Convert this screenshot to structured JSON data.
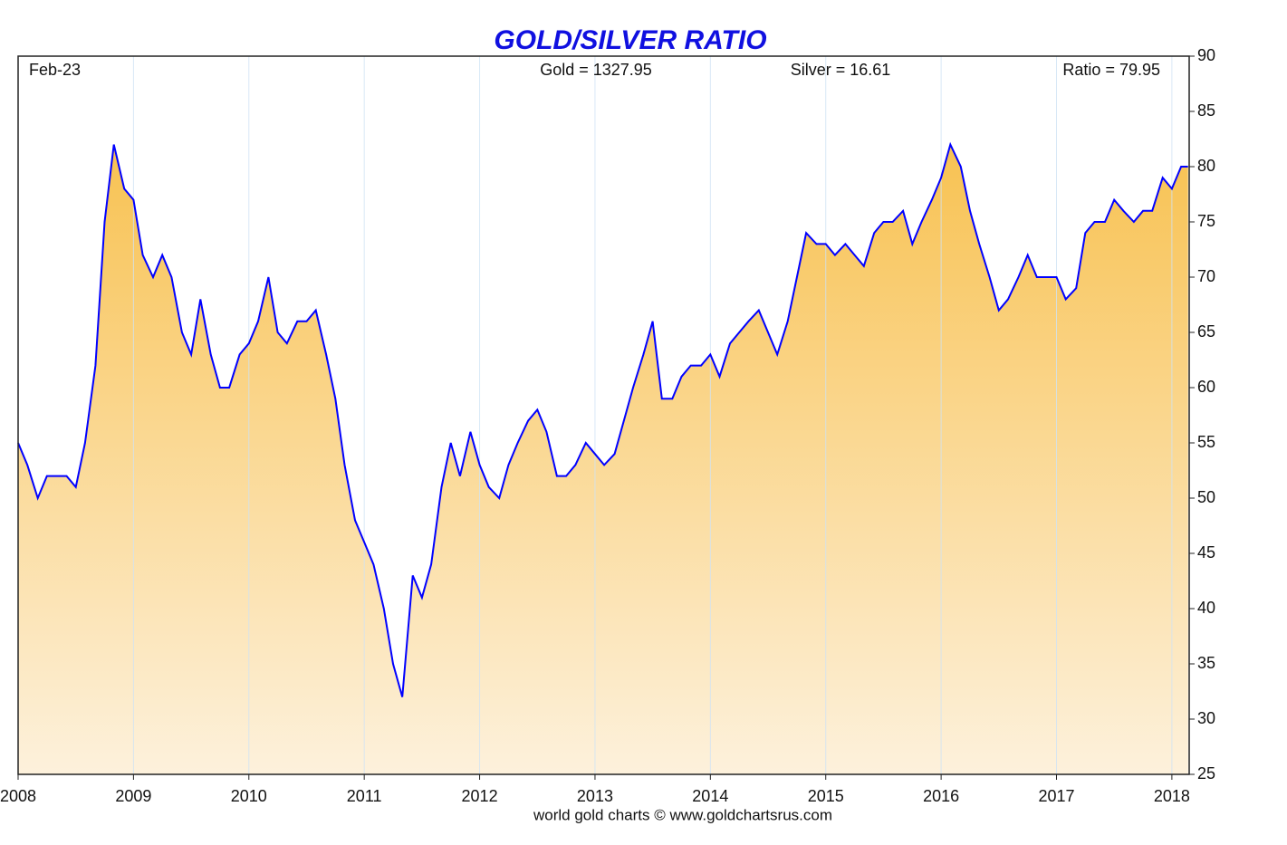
{
  "chart_data": {
    "type": "area",
    "title": "GOLD/SILVER RATIO",
    "annotations": [
      "Feb-23",
      "Gold = 1327.95",
      "Silver = 16.61",
      "Ratio = 79.95"
    ],
    "footer": "world gold charts © www.goldchartsrus.com",
    "color": "#0000ff",
    "x": [
      2008.0,
      2008.08,
      2008.17,
      2008.25,
      2008.33,
      2008.42,
      2008.5,
      2008.58,
      2008.67,
      2008.75,
      2008.83,
      2008.92,
      2009.0,
      2009.08,
      2009.17,
      2009.25,
      2009.33,
      2009.42,
      2009.5,
      2009.58,
      2009.67,
      2009.75,
      2009.83,
      2009.92,
      2010.0,
      2010.08,
      2010.17,
      2010.25,
      2010.33,
      2010.42,
      2010.5,
      2010.58,
      2010.67,
      2010.75,
      2010.83,
      2010.92,
      2011.0,
      2011.08,
      2011.17,
      2011.25,
      2011.33,
      2011.42,
      2011.5,
      2011.58,
      2011.67,
      2011.75,
      2011.83,
      2011.92,
      2012.0,
      2012.08,
      2012.17,
      2012.25,
      2012.33,
      2012.42,
      2012.5,
      2012.58,
      2012.67,
      2012.75,
      2012.83,
      2012.92,
      2013.0,
      2013.08,
      2013.17,
      2013.25,
      2013.33,
      2013.42,
      2013.5,
      2013.58,
      2013.67,
      2013.75,
      2013.83,
      2013.92,
      2014.0,
      2014.08,
      2014.17,
      2014.25,
      2014.33,
      2014.42,
      2014.5,
      2014.58,
      2014.67,
      2014.75,
      2014.83,
      2014.92,
      2015.0,
      2015.08,
      2015.17,
      2015.25,
      2015.33,
      2015.42,
      2015.5,
      2015.58,
      2015.67,
      2015.75,
      2015.83,
      2015.92,
      2016.0,
      2016.08,
      2016.17,
      2016.25,
      2016.33,
      2016.42,
      2016.5,
      2016.58,
      2016.67,
      2016.75,
      2016.83,
      2016.92,
      2017.0,
      2017.08,
      2017.17,
      2017.25,
      2017.33,
      2017.42,
      2017.5,
      2017.58,
      2017.67,
      2017.75,
      2017.83,
      2017.92,
      2018.0,
      2018.08,
      2018.14
    ],
    "values": [
      55,
      53,
      50,
      52,
      52,
      52,
      51,
      55,
      62,
      75,
      82,
      78,
      77,
      72,
      70,
      72,
      70,
      65,
      63,
      68,
      63,
      60,
      60,
      63,
      64,
      66,
      70,
      65,
      64,
      66,
      66,
      67,
      63,
      59,
      53,
      48,
      46,
      44,
      40,
      35,
      32,
      43,
      41,
      44,
      51,
      55,
      52,
      56,
      53,
      51,
      50,
      53,
      55,
      57,
      58,
      56,
      52,
      52,
      53,
      55,
      54,
      53,
      54,
      57,
      60,
      63,
      66,
      59,
      59,
      61,
      62,
      62,
      63,
      61,
      64,
      65,
      66,
      67,
      65,
      63,
      66,
      70,
      74,
      73,
      73,
      72,
      73,
      72,
      71,
      74,
      75,
      75,
      76,
      73,
      75,
      77,
      79,
      82,
      80,
      76,
      73,
      70,
      67,
      68,
      70,
      72,
      70,
      70,
      70,
      68,
      69,
      74,
      75,
      75,
      77,
      76,
      75,
      76,
      76,
      79,
      78,
      80,
      80
    ],
    "xlim": [
      2008,
      2018.15
    ],
    "ylim": [
      25,
      90
    ],
    "xticks": [
      2008,
      2009,
      2010,
      2011,
      2012,
      2013,
      2014,
      2015,
      2016,
      2017,
      2018
    ],
    "yticks": [
      25,
      30,
      35,
      40,
      45,
      50,
      55,
      60,
      65,
      70,
      75,
      80,
      85,
      90
    ],
    "grid": true
  }
}
